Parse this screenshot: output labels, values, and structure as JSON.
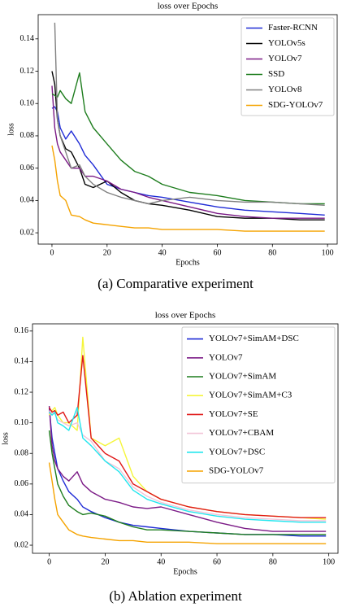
{
  "chart_data": [
    {
      "type": "line",
      "title": "loss over Epochs",
      "x_label": "Epochs",
      "y_label": "loss",
      "caption": "(a) Comparative experiment",
      "x": [
        0,
        1,
        2,
        3,
        5,
        7,
        10,
        12,
        15,
        20,
        25,
        30,
        35,
        40,
        50,
        60,
        70,
        80,
        90,
        99
      ],
      "xlim": [
        -5,
        103.5
      ],
      "xticks": [
        0,
        20,
        40,
        60,
        80,
        100
      ],
      "ylim": [
        0.013,
        0.155
      ],
      "yticks": [
        0.02,
        0.04,
        0.06,
        0.08,
        {
          "value": 0.1,
          "label": "0.10"
        },
        0.12,
        0.14
      ],
      "legend": "upper right",
      "series": [
        {
          "name": "Faster-RCNN",
          "color": "#1f2bd6",
          "values": [
            0.097,
            0.098,
            0.095,
            0.085,
            0.078,
            0.083,
            0.075,
            0.068,
            0.062,
            0.05,
            0.047,
            0.045,
            0.043,
            0.042,
            0.039,
            0.036,
            0.034,
            0.033,
            0.032,
            0.031
          ]
        },
        {
          "name": "YOLOv5s",
          "color": "#000000",
          "values": [
            0.12,
            0.112,
            0.09,
            0.08,
            0.072,
            0.07,
            0.06,
            0.05,
            0.048,
            0.052,
            0.045,
            0.04,
            0.038,
            0.037,
            0.034,
            0.03,
            0.029,
            0.029,
            0.028,
            0.028
          ]
        },
        {
          "name": "YOLOv7",
          "color": "#7b1a86",
          "values": [
            0.111,
            0.085,
            0.075,
            0.07,
            0.065,
            0.06,
            0.06,
            0.055,
            0.055,
            0.052,
            0.047,
            0.045,
            0.042,
            0.04,
            0.036,
            0.032,
            0.03,
            0.029,
            0.029,
            0.029
          ]
        },
        {
          "name": "SSD",
          "color": "#1e7d1e",
          "values": [
            0.106,
            0.105,
            0.104,
            0.108,
            0.103,
            0.1,
            0.119,
            0.095,
            0.085,
            0.075,
            0.065,
            0.058,
            0.055,
            0.05,
            0.045,
            0.043,
            0.04,
            0.039,
            0.038,
            0.038
          ]
        },
        {
          "name": "YOLOv8",
          "color": "#808080",
          "values": [
            null,
            0.15,
            0.09,
            0.08,
            0.07,
            0.06,
            0.062,
            0.055,
            0.05,
            0.045,
            0.042,
            0.04,
            0.038,
            0.04,
            0.042,
            0.04,
            0.039,
            0.039,
            0.038,
            0.037
          ]
        },
        {
          "name": "SDG-YOLOv7",
          "color": "#f5a300",
          "values": [
            0.074,
            0.065,
            0.052,
            0.043,
            0.04,
            0.031,
            0.03,
            0.028,
            0.026,
            0.025,
            0.024,
            0.023,
            0.023,
            0.022,
            0.022,
            0.022,
            0.021,
            0.021,
            0.021,
            0.021
          ]
        }
      ]
    },
    {
      "type": "line",
      "title": "loss over Epochs",
      "x_label": "Epochs",
      "y_label": "loss",
      "caption": "(b) Ablation experiment",
      "x": [
        0,
        1,
        2,
        3,
        5,
        7,
        10,
        12,
        15,
        20,
        25,
        30,
        35,
        40,
        50,
        60,
        70,
        80,
        90,
        99
      ],
      "xlim": [
        -6,
        103.3
      ],
      "xticks": [
        0,
        20,
        40,
        60,
        80,
        100
      ],
      "ylim": [
        0.0147,
        0.1647
      ],
      "yticks": [
        0.02,
        0.04,
        0.06,
        0.08,
        {
          "value": 0.1,
          "label": "0.10"
        },
        0.12,
        0.14,
        0.16
      ],
      "legend": "upper right",
      "series": [
        {
          "name": "YOLOv7+SimAM+DSC",
          "color": "#1f2bd6",
          "values": [
            0.11,
            0.09,
            0.08,
            0.07,
            0.062,
            0.055,
            0.05,
            0.045,
            0.042,
            0.038,
            0.035,
            0.033,
            0.032,
            0.031,
            0.029,
            0.028,
            0.027,
            0.027,
            0.026,
            0.026
          ]
        },
        {
          "name": "YOLOv7",
          "color": "#7b1a86",
          "values": [
            0.111,
            0.085,
            0.075,
            0.07,
            0.065,
            0.062,
            0.068,
            0.06,
            0.055,
            0.05,
            0.048,
            0.045,
            0.044,
            0.045,
            0.04,
            0.035,
            0.031,
            0.029,
            0.029,
            0.029
          ]
        },
        {
          "name": "YOLOv7+SimAM",
          "color": "#1e7d1e",
          "values": [
            0.095,
            0.08,
            0.07,
            0.06,
            0.052,
            0.046,
            0.042,
            0.04,
            0.041,
            0.039,
            0.035,
            0.032,
            0.03,
            0.03,
            0.029,
            0.028,
            0.027,
            0.027,
            0.027,
            0.027
          ]
        },
        {
          "name": "YOLOv7+SimAM+C3",
          "color": "#f5f53a",
          "values": [
            0.105,
            0.108,
            0.11,
            0.105,
            0.1,
            0.1,
            0.095,
            0.156,
            0.09,
            0.085,
            0.09,
            0.065,
            0.055,
            0.05,
            0.045,
            0.042,
            0.04,
            0.039,
            0.038,
            0.037
          ]
        },
        {
          "name": "YOLOv7+SE",
          "color": "#e01818",
          "values": [
            0.11,
            0.107,
            0.108,
            0.105,
            0.107,
            0.1,
            0.105,
            0.144,
            0.09,
            0.08,
            0.075,
            0.06,
            0.055,
            0.05,
            0.045,
            0.042,
            0.04,
            0.039,
            0.038,
            0.038
          ]
        },
        {
          "name": "YOLOv7+CBAM",
          "color": "#f2c4d8",
          "values": [
            0.108,
            0.106,
            0.106,
            0.102,
            0.1,
            0.098,
            0.1,
            0.092,
            0.088,
            0.075,
            0.07,
            0.058,
            0.052,
            0.048,
            0.043,
            0.04,
            0.038,
            0.037,
            0.036,
            0.036
          ]
        },
        {
          "name": "YOLOv7+DSC",
          "color": "#22e6ee",
          "values": [
            0.107,
            0.105,
            0.107,
            0.1,
            0.098,
            0.095,
            0.11,
            0.09,
            0.085,
            0.075,
            0.068,
            0.056,
            0.05,
            0.047,
            0.042,
            0.039,
            0.037,
            0.036,
            0.035,
            0.035
          ]
        },
        {
          "name": "SDG-YOLOv7",
          "color": "#f5a300",
          "values": [
            0.074,
            0.062,
            0.05,
            0.04,
            0.035,
            0.03,
            0.027,
            0.026,
            0.025,
            0.024,
            0.023,
            0.023,
            0.022,
            0.022,
            0.022,
            0.021,
            0.021,
            0.021,
            0.021,
            0.021
          ]
        }
      ]
    }
  ]
}
